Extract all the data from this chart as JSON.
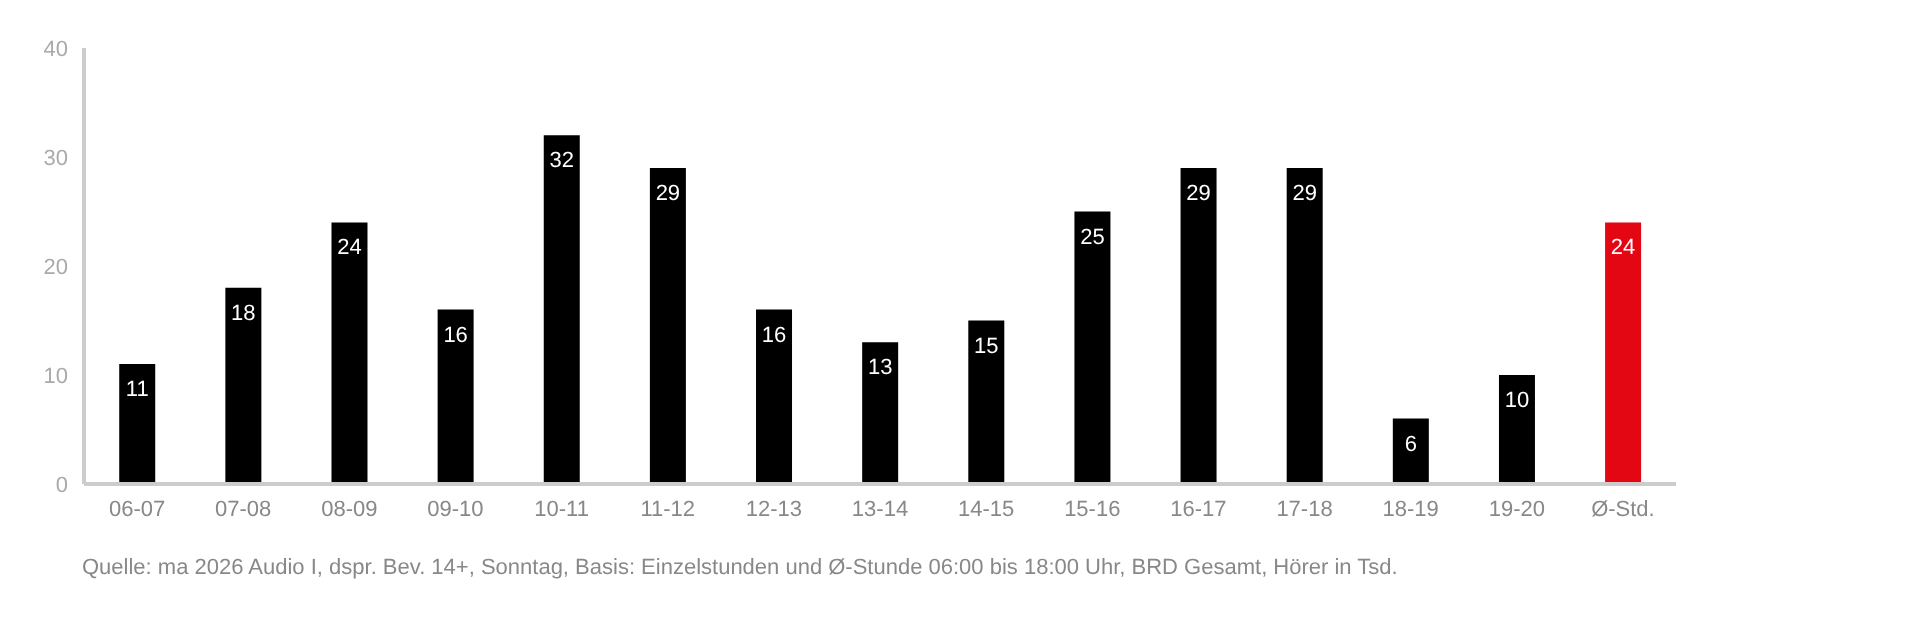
{
  "chart_data": {
    "type": "bar",
    "categories": [
      "06-07",
      "07-08",
      "08-09",
      "09-10",
      "10-11",
      "11-12",
      "12-13",
      "13-14",
      "14-15",
      "15-16",
      "16-17",
      "17-18",
      "18-19",
      "19-20",
      "Ø-Std."
    ],
    "values": [
      11,
      18,
      24,
      16,
      32,
      29,
      16,
      13,
      15,
      25,
      29,
      29,
      6,
      10,
      24
    ],
    "colors": [
      "#000000",
      "#000000",
      "#000000",
      "#000000",
      "#000000",
      "#000000",
      "#000000",
      "#000000",
      "#000000",
      "#000000",
      "#000000",
      "#000000",
      "#000000",
      "#000000",
      "#e30613"
    ],
    "ylim": [
      0,
      40
    ],
    "yticks": [
      0,
      10,
      20,
      30,
      40
    ],
    "grid": false,
    "data_labels": true,
    "annotations": [
      "Quelle: ma 2026 Audio I, dspr. Bev. 14+, Sonntag, Basis: Einzelstunden und Ø-Stunde 06:00 bis 18:00 Uhr, BRD Gesamt, Hörer in Tsd."
    ]
  }
}
